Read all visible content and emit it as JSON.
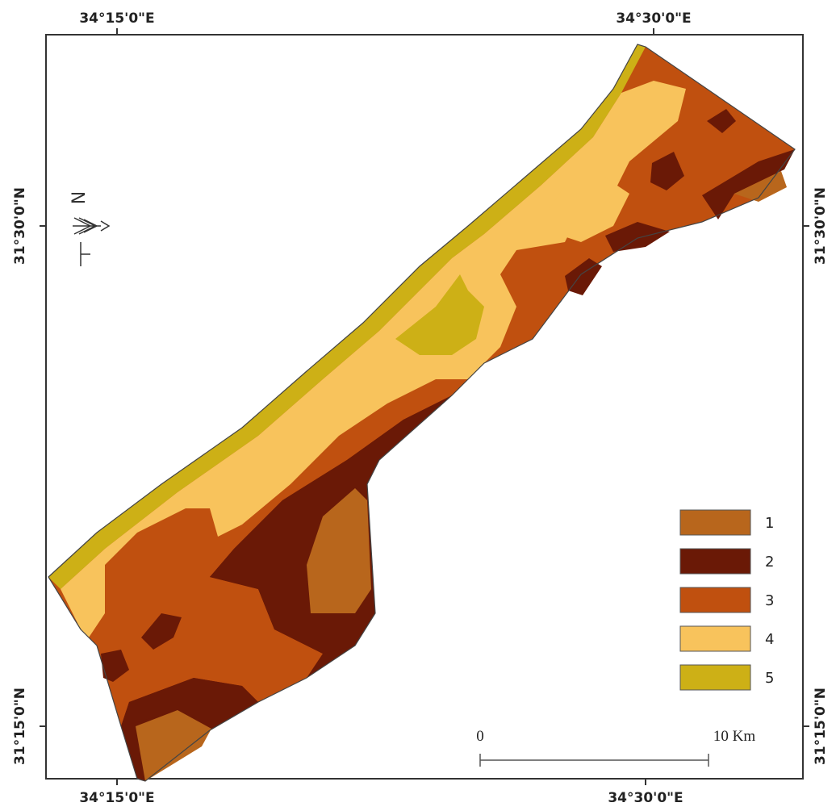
{
  "map": {
    "top_labels": [
      "34°15'0\"E",
      "34°30'0\"E"
    ],
    "bottom_labels": [
      "34°15'0\"E",
      "34°30'0\"E"
    ],
    "left_labels": [
      "31°30'0\"N",
      "31°15'0\"N"
    ],
    "right_labels": [
      "31°30'0\"N",
      "31°15'0\"N"
    ],
    "north": "N",
    "legend": [
      {
        "label": "1",
        "color": "#b8661c"
      },
      {
        "label": "2",
        "color": "#6a1906"
      },
      {
        "label": "3",
        "color": "#c0500f"
      },
      {
        "label": "4",
        "color": "#f8c35c"
      },
      {
        "label": "5",
        "color": "#cdb016"
      }
    ],
    "scale_bar": {
      "start": "0",
      "end": "10 Km"
    }
  }
}
